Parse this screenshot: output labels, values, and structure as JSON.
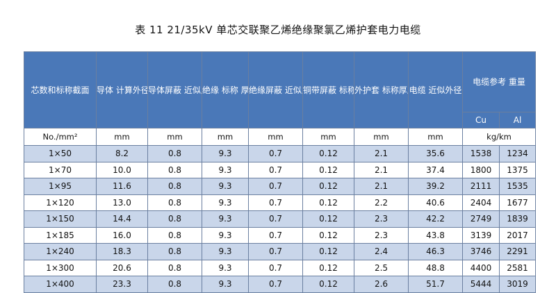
{
  "title": "表 11   21/35kV 单芯交联聚乙烯绝缘聚氯乙烯护套电力电缆",
  "headers": {
    "c0": "芯数和标称截面",
    "c1": "导体\n计算外径",
    "c2": "导体屏蔽\n近似厚度",
    "c3": "绝缘\n标称\n厚度",
    "c4": "绝缘屏蔽\n近似厚度",
    "c5": "铜带屏蔽\n标称厚度",
    "c6": "外护套\n标称厚度",
    "c7": "电缆\n近似外径",
    "c8": "电缆参考\n重量",
    "cu": "Cu",
    "al": "Al"
  },
  "units": [
    "No./mm²",
    "mm",
    "mm",
    "mm",
    "mm",
    "mm",
    "mm",
    "mm",
    "kg/km"
  ],
  "rows": [
    [
      "1×50",
      "8.2",
      "0.8",
      "9.3",
      "0.7",
      "0.12",
      "2.1",
      "35.6",
      "1538",
      "1234"
    ],
    [
      "1×70",
      "10.0",
      "0.8",
      "9.3",
      "0.7",
      "0.12",
      "2.1",
      "37.4",
      "1800",
      "1375"
    ],
    [
      "1×95",
      "11.6",
      "0.8",
      "9.3",
      "0.7",
      "0.12",
      "2.1",
      "39.2",
      "2111",
      "1535"
    ],
    [
      "1×120",
      "13.0",
      "0.8",
      "9.3",
      "0.7",
      "0.12",
      "2.2",
      "40.6",
      "2404",
      "1677"
    ],
    [
      "1×150",
      "14.4",
      "0.8",
      "9.3",
      "0.7",
      "0.12",
      "2.3",
      "42.2",
      "2749",
      "1839"
    ],
    [
      "1×185",
      "16.0",
      "0.8",
      "9.3",
      "0.7",
      "0.12",
      "2.3",
      "43.8",
      "3139",
      "2017"
    ],
    [
      "1×240",
      "18.3",
      "0.8",
      "9.3",
      "0.7",
      "0.12",
      "2.4",
      "46.3",
      "3746",
      "2291"
    ],
    [
      "1×300",
      "20.6",
      "0.8",
      "9.3",
      "0.7",
      "0.12",
      "2.5",
      "48.8",
      "4400",
      "2581"
    ],
    [
      "1×400",
      "23.3",
      "0.8",
      "9.3",
      "0.7",
      "0.12",
      "2.6",
      "51.7",
      "5444",
      "3019"
    ]
  ],
  "colors": {
    "header": "#4a78b8",
    "stripe": "#c9d6ea",
    "border": "#6a7fa0"
  }
}
